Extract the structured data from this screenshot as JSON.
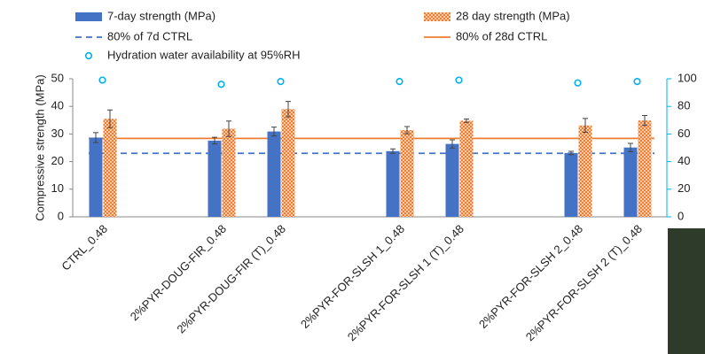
{
  "chart_data": {
    "type": "bar",
    "y_axis_title": "Compressive strength (MPa)",
    "categories": [
      "CTRL_0.48",
      null,
      "2%PYR-DOUG-FIR_0.48",
      "2%PYR-DOUG-FIR (T)_0.48",
      null,
      "2%PYR-FOR-SLSH 1_0.48",
      "2%PYR-FOR-SLSH 1 (T)_0.48",
      null,
      "2%PYR-FOR-SLSH 2_0.48",
      "2%PYR-FOR-SLSH 2 (T)_0.48"
    ],
    "series": [
      {
        "name": "7-day strength (MPa)",
        "type": "bar",
        "color": "#4472c4",
        "values": [
          28.7,
          null,
          27.6,
          30.9,
          null,
          23.8,
          26.4,
          null,
          23.1,
          25.1
        ],
        "errors": [
          1.8,
          null,
          1.2,
          1.6,
          null,
          0.8,
          1.5,
          null,
          0.6,
          1.5
        ]
      },
      {
        "name": "28 day strength (MPa)",
        "type": "bar",
        "color": "#ed7d31",
        "hatched": true,
        "values": [
          35.5,
          null,
          31.9,
          39.0,
          null,
          31.4,
          34.8,
          null,
          33.1,
          34.9
        ],
        "errors": [
          3.2,
          null,
          2.8,
          2.8,
          null,
          1.3,
          0.6,
          null,
          2.5,
          1.8
        ]
      },
      {
        "name": "Hydration water availability at 95%RH",
        "type": "scatter",
        "axis": "y2",
        "color": "#00b0f0",
        "values": [
          99,
          null,
          96,
          98,
          null,
          98,
          99,
          null,
          97,
          98
        ]
      }
    ],
    "reference_lines": [
      {
        "name": "80% of 7d CTRL",
        "value": 23,
        "color": "#4472c4",
        "dashed": true
      },
      {
        "name": "80% of 28d CTRL",
        "value": 28.4,
        "color": "#ed7d31",
        "dashed": false
      }
    ],
    "ylim": [
      0,
      50
    ],
    "yticks": [
      0,
      10,
      20,
      30,
      40,
      50
    ],
    "y2lim": [
      0,
      100
    ],
    "y2ticks": [
      0,
      20,
      40,
      60,
      80,
      100
    ]
  }
}
